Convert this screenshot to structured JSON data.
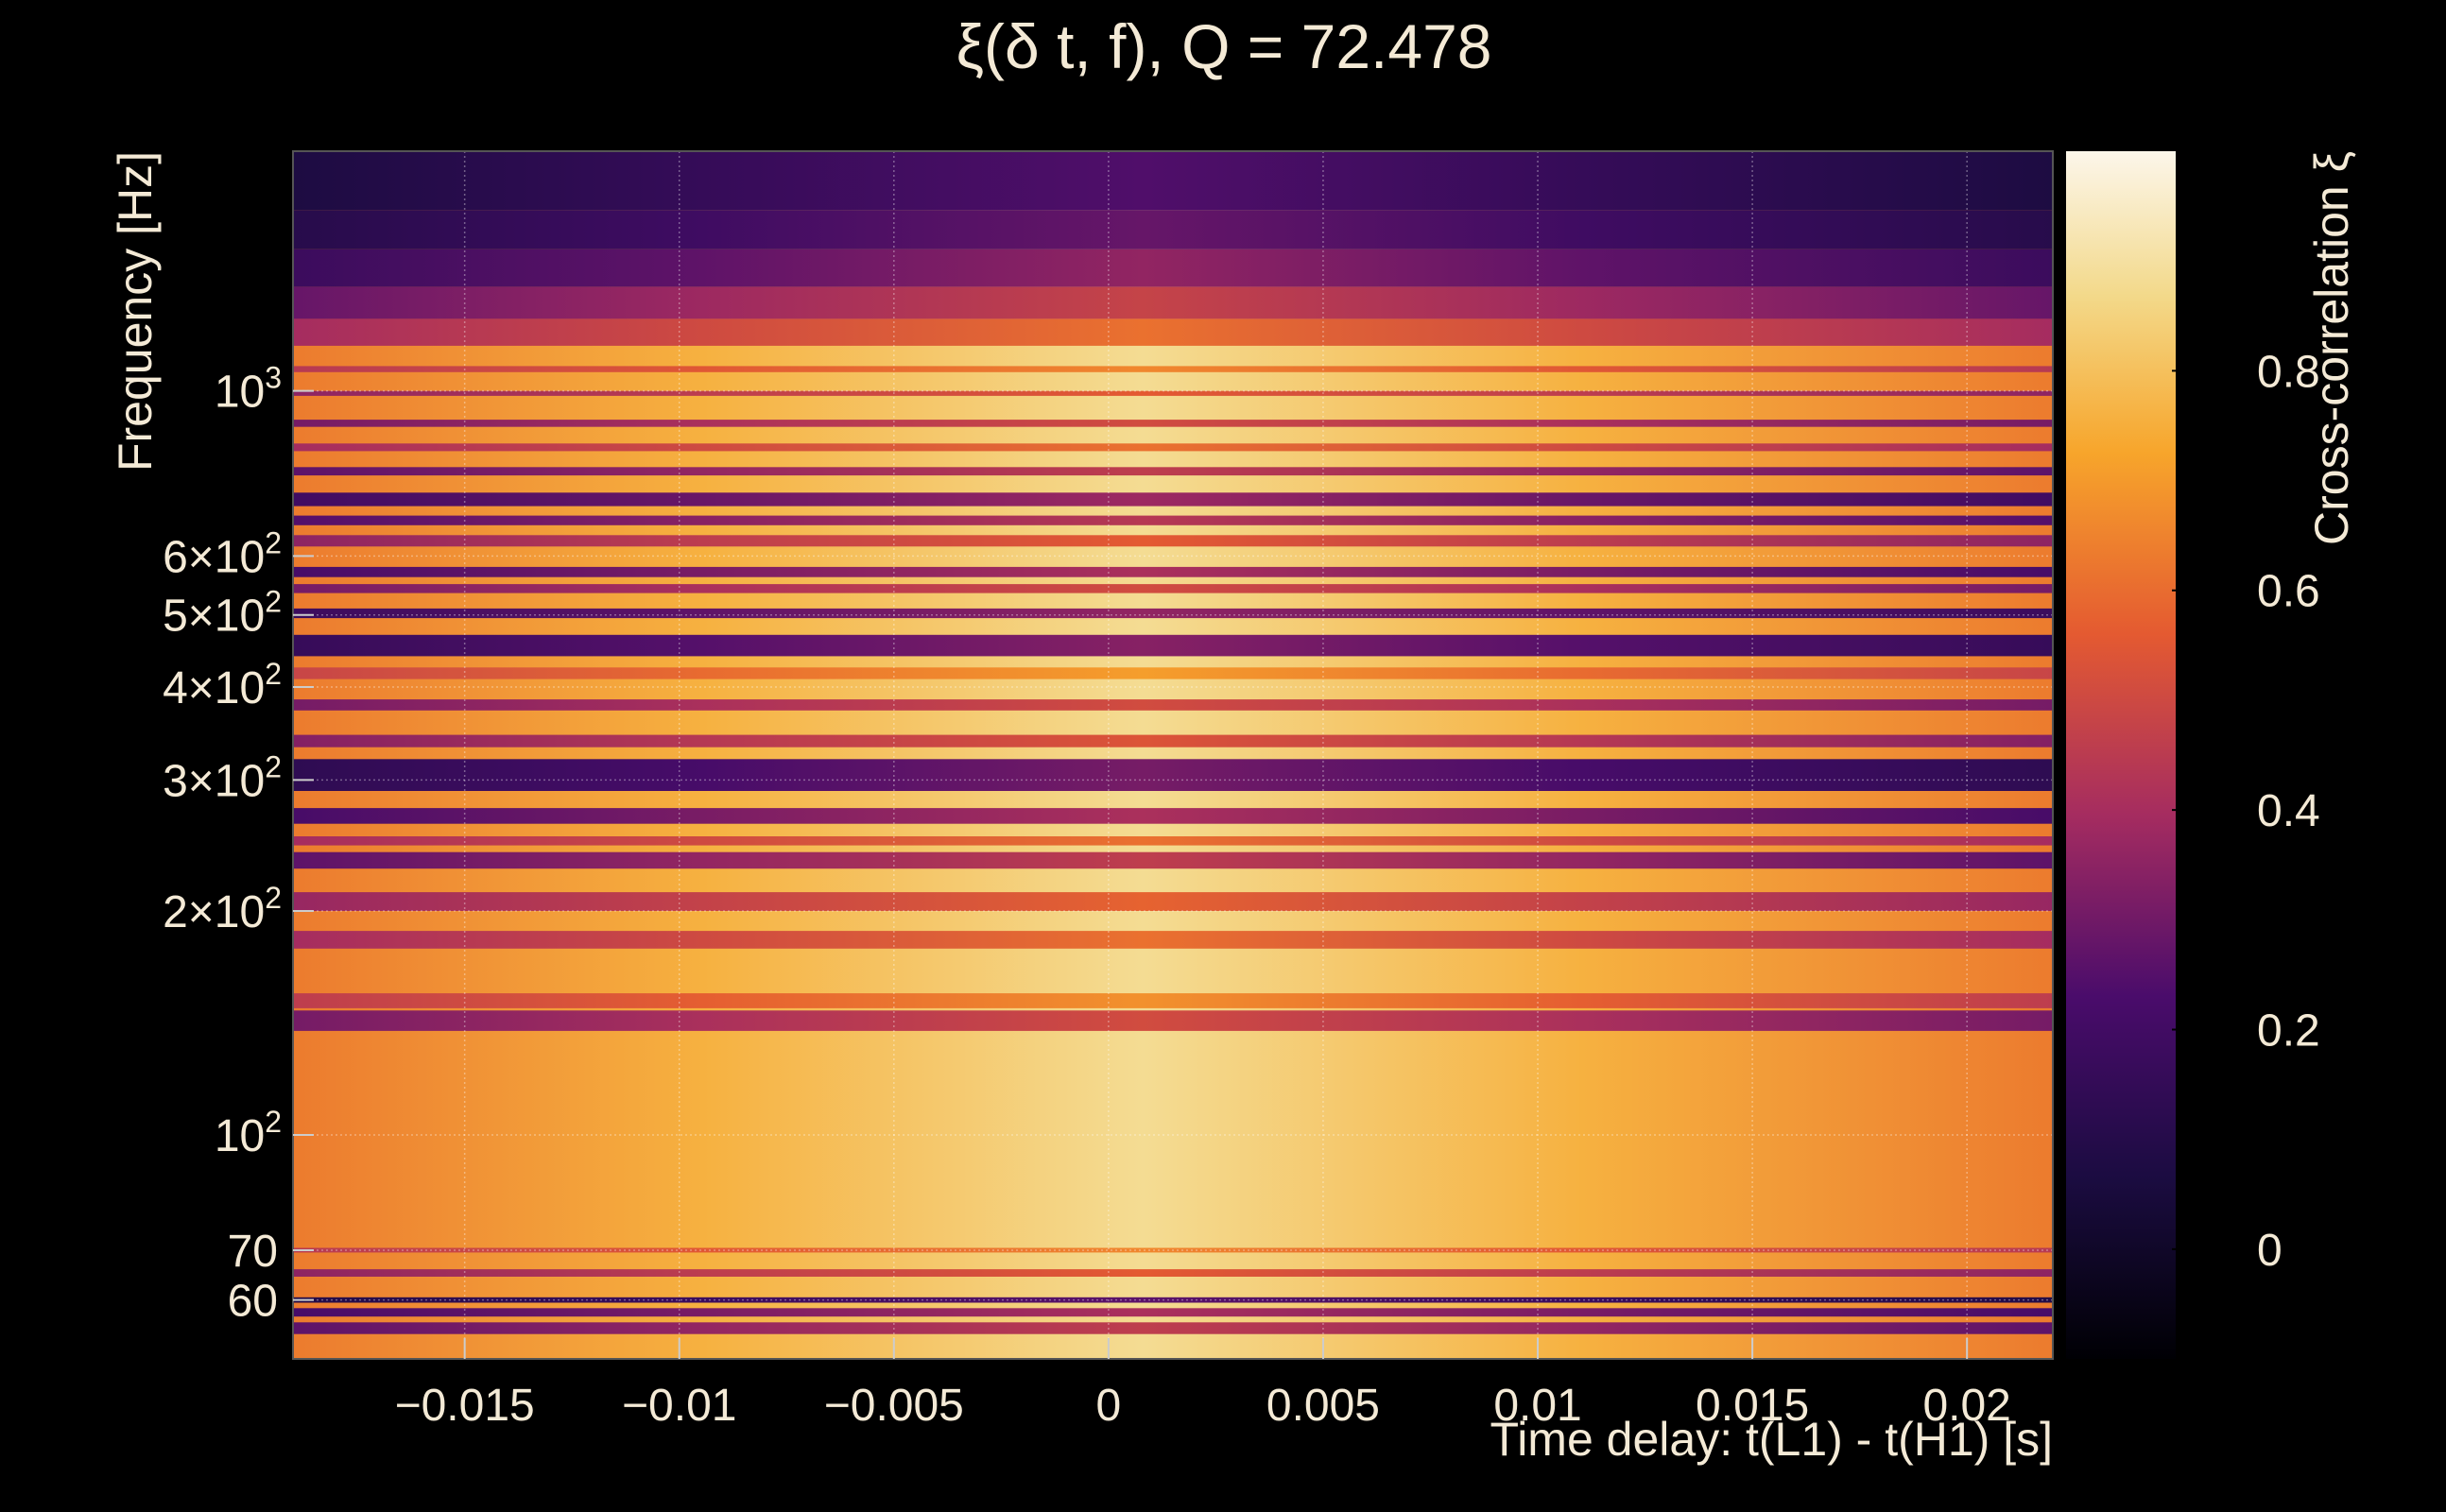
{
  "chart_data": {
    "type": "heatmap",
    "title": "ξ(δ t, f), Q = 72.478",
    "xlabel": "Time delay: t(L1) - t(H1) [s]",
    "ylabel": "Frequency [Hz]",
    "colorbar_label": "Cross-correlation ξ",
    "xlim": [
      -0.019,
      0.022
    ],
    "ylim": [
      50,
      2100
    ],
    "y_scale": "log",
    "x_ticks": [
      {
        "value": -0.015,
        "label": "−0.015"
      },
      {
        "value": -0.01,
        "label": "−0.01"
      },
      {
        "value": -0.005,
        "label": "−0.005"
      },
      {
        "value": 0,
        "label": "0"
      },
      {
        "value": 0.005,
        "label": "0.005"
      },
      {
        "value": 0.01,
        "label": "0.01"
      },
      {
        "value": 0.015,
        "label": "0.015"
      },
      {
        "value": 0.02,
        "label": "0.02"
      }
    ],
    "y_ticks": [
      {
        "value": 60,
        "label": "60"
      },
      {
        "value": 70,
        "label": "70"
      },
      {
        "value": 100,
        "label": "10",
        "exponent": "2"
      },
      {
        "value": 200,
        "label": "2×10",
        "exponent": "2"
      },
      {
        "value": 300,
        "label": "3×10",
        "exponent": "2"
      },
      {
        "value": 400,
        "label": "4×10",
        "exponent": "2"
      },
      {
        "value": 500,
        "label": "5×10",
        "exponent": "2"
      },
      {
        "value": 600,
        "label": "6×10",
        "exponent": "2"
      },
      {
        "value": 1000,
        "label": "10",
        "exponent": "3"
      }
    ],
    "colorbar_range": [
      -0.1,
      1.0
    ],
    "colorbar_ticks": [
      {
        "value": 0,
        "label": "0"
      },
      {
        "value": 0.2,
        "label": "0.2"
      },
      {
        "value": 0.4,
        "label": "0.4"
      },
      {
        "value": 0.6,
        "label": "0.6"
      },
      {
        "value": 0.8,
        "label": "0.8"
      }
    ],
    "colormap": "inferno",
    "grid": true,
    "peak_time_delay": 0.0008,
    "frequency_bands": [
      {
        "f_low": 50,
        "f_high": 2100,
        "value": 0.72
      },
      {
        "f_low": 54,
        "f_high": 56,
        "value": 0.3
      },
      {
        "f_low": 57,
        "f_high": 58.5,
        "value": 0.25
      },
      {
        "f_low": 59.5,
        "f_high": 60.5,
        "value": 0.1
      },
      {
        "f_low": 64.5,
        "f_high": 66,
        "value": 0.4
      },
      {
        "f_low": 69.5,
        "f_high": 70.5,
        "value": 0.5
      },
      {
        "f_low": 138,
        "f_high": 147,
        "value": 0.35
      },
      {
        "f_low": 148,
        "f_high": 155,
        "value": 0.52
      },
      {
        "f_low": 178,
        "f_high": 188,
        "value": 0.45
      },
      {
        "f_low": 200,
        "f_high": 212,
        "value": 0.42
      },
      {
        "f_low": 228,
        "f_high": 240,
        "value": 0.3
      },
      {
        "f_low": 245,
        "f_high": 252,
        "value": 0.45
      },
      {
        "f_low": 262,
        "f_high": 275,
        "value": 0.25
      },
      {
        "f_low": 290,
        "f_high": 320,
        "value": 0.15
      },
      {
        "f_low": 332,
        "f_high": 345,
        "value": 0.38
      },
      {
        "f_low": 372,
        "f_high": 385,
        "value": 0.35
      },
      {
        "f_low": 410,
        "f_high": 425,
        "value": 0.55
      },
      {
        "f_low": 440,
        "f_high": 470,
        "value": 0.18
      },
      {
        "f_low": 495,
        "f_high": 510,
        "value": 0.2
      },
      {
        "f_low": 535,
        "f_high": 550,
        "value": 0.35
      },
      {
        "f_low": 562,
        "f_high": 580,
        "value": 0.25
      },
      {
        "f_low": 618,
        "f_high": 640,
        "value": 0.4
      },
      {
        "f_low": 660,
        "f_high": 680,
        "value": 0.28
      },
      {
        "f_low": 700,
        "f_high": 730,
        "value": 0.22
      },
      {
        "f_low": 770,
        "f_high": 790,
        "value": 0.3
      },
      {
        "f_low": 830,
        "f_high": 850,
        "value": 0.45
      },
      {
        "f_low": 895,
        "f_high": 915,
        "value": 0.35
      },
      {
        "f_low": 985,
        "f_high": 1000,
        "value": 0.4
      },
      {
        "f_low": 1060,
        "f_high": 1080,
        "value": 0.5
      },
      {
        "f_low": 1150,
        "f_high": 1250,
        "value": 0.45
      },
      {
        "f_low": 1250,
        "f_high": 1380,
        "value": 0.32
      },
      {
        "f_low": 1380,
        "f_high": 1550,
        "value": 0.2
      },
      {
        "f_low": 1550,
        "f_high": 1750,
        "value": 0.12
      },
      {
        "f_low": 1750,
        "f_high": 2100,
        "value": 0.08
      }
    ]
  }
}
